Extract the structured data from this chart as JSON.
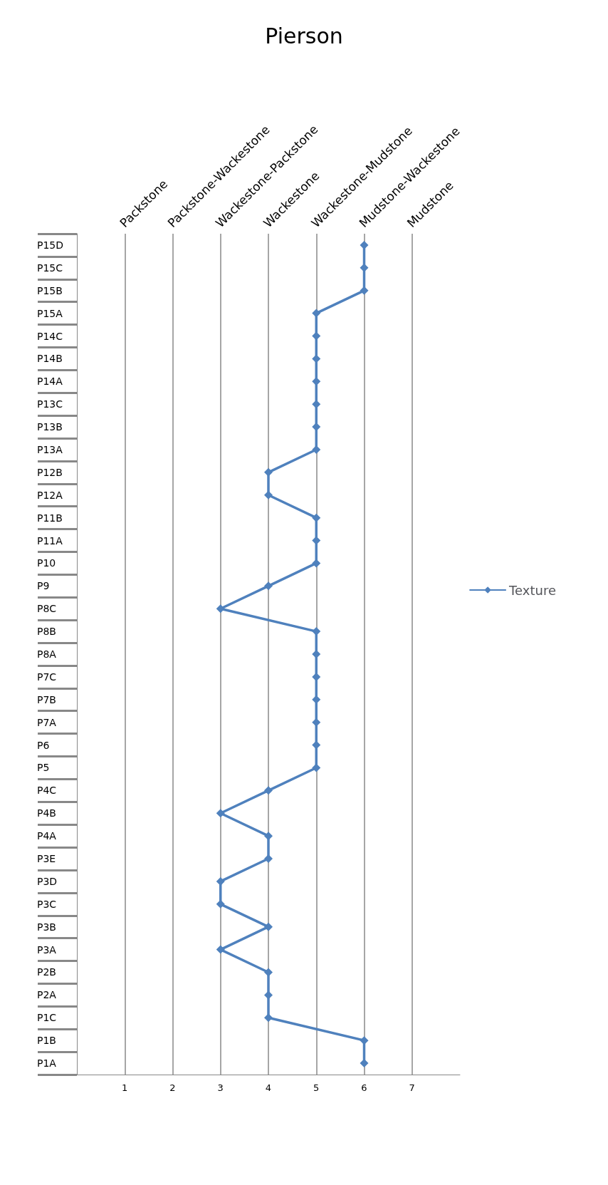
{
  "chart_data": {
    "type": "line",
    "title": "Pierson",
    "orientation": "horizontal",
    "categories": [
      "P15D",
      "P15C",
      "P15B",
      "P15A",
      "P14C",
      "P14B",
      "P14A",
      "P13C",
      "P13B",
      "P13A",
      "P12B",
      "P12A",
      "P11B",
      "P11A",
      "P10",
      "P9",
      "P8C",
      "P8B",
      "P8A",
      "P7C",
      "P7B",
      "P7A",
      "P6",
      "P5",
      "P4C",
      "P4B",
      "P4A",
      "P3E",
      "P3D",
      "P3C",
      "P3B",
      "P3A",
      "P2B",
      "P2A",
      "P1C",
      "P1B",
      "P1A"
    ],
    "series": [
      {
        "name": "Texture",
        "color": "#4f81bd",
        "values": [
          6,
          6,
          6,
          5,
          5,
          5,
          5,
          5,
          5,
          5,
          4,
          4,
          5,
          5,
          5,
          4,
          3,
          5,
          5,
          5,
          5,
          5,
          5,
          5,
          4,
          3,
          4,
          4,
          3,
          3,
          4,
          3,
          4,
          4,
          4,
          6,
          6
        ]
      }
    ],
    "xlim": [
      0,
      8
    ],
    "xticks": [
      1,
      2,
      3,
      4,
      5,
      6,
      7
    ],
    "annotations": [
      "Packstone",
      "Packstone-Wackestone",
      "Wackestone-Packstone",
      "Wackestone",
      "Wackestone-Mudstone",
      "Mudstone-Wackestone",
      "Mudstone"
    ],
    "grid": "x",
    "legend": "right",
    "marker": "diamond",
    "line_style": "solid"
  }
}
